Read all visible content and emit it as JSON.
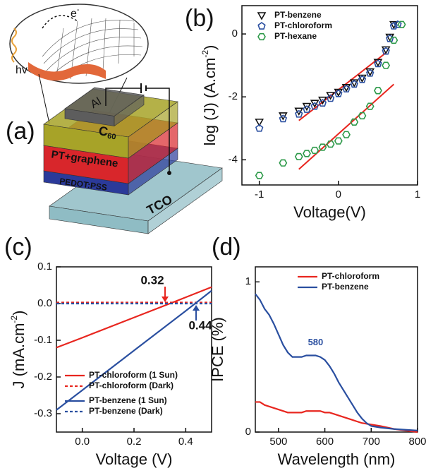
{
  "diagram": {
    "label": "(a)",
    "photon": "hv",
    "electron": "e",
    "electron_sup": "-",
    "al": "Al",
    "c60": "C",
    "c60_sub": "60",
    "active": "PT+graphene",
    "htl": "PEDOT:PSS",
    "tco": "TCO"
  },
  "chart_data": [
    {
      "type": "scatter",
      "panel_label": "(b)",
      "xlabel": "Voltage(V)",
      "ylabel": "log (J) (A.cm",
      "ylabel_sup": "-2",
      "ylabel_end": ")",
      "xlim": [
        -1.22,
        1.0
      ],
      "ylim": [
        -4.8,
        0.9
      ],
      "xticks": [
        -1,
        0,
        1
      ],
      "yticks": [
        0,
        -2,
        -4
      ],
      "legend": "upper left",
      "series": [
        {
          "name": "PT-benzene",
          "color": "#111111",
          "marker": "triangle-down",
          "x": [
            -1,
            -0.7,
            -0.5,
            -0.4,
            -0.3,
            -0.2,
            -0.1,
            0,
            0.1,
            0.2,
            0.3,
            0.4,
            0.5,
            0.6,
            0.65,
            0.7
          ],
          "values": [
            -2.8,
            -2.6,
            -2.45,
            -2.3,
            -2.2,
            -2.1,
            -1.95,
            -1.85,
            -1.7,
            -1.55,
            -1.4,
            -1.2,
            -0.9,
            -0.5,
            -0.1,
            0.3
          ]
        },
        {
          "name": "PT-chloroform",
          "color": "#2a4fa0",
          "marker": "pentagon",
          "x": [
            -1,
            -0.7,
            -0.5,
            -0.4,
            -0.3,
            -0.2,
            -0.1,
            0,
            0.1,
            0.2,
            0.3,
            0.4,
            0.5,
            0.6,
            0.65,
            0.7,
            0.75
          ],
          "values": [
            -3.0,
            -2.7,
            -2.55,
            -2.4,
            -2.3,
            -2.2,
            -2.05,
            -1.9,
            -1.75,
            -1.6,
            -1.45,
            -1.25,
            -0.95,
            -0.55,
            -0.15,
            0.25,
            0.3
          ]
        },
        {
          "name": "PT-hexane",
          "color": "#2e9a4a",
          "marker": "hexagon",
          "x": [
            -1,
            -0.7,
            -0.5,
            -0.4,
            -0.3,
            -0.2,
            -0.1,
            0,
            0.1,
            0.2,
            0.3,
            0.4,
            0.5,
            0.6,
            0.7,
            0.8
          ],
          "values": [
            -4.5,
            -4.1,
            -3.9,
            -3.8,
            -3.7,
            -3.6,
            -3.5,
            -3.4,
            -3.2,
            -2.8,
            -2.6,
            -2.3,
            -1.8,
            -1.0,
            -0.2,
            0.3
          ]
        }
      ],
      "fit_lines": [
        {
          "color": "#e8261f",
          "x": [
            -0.5,
            0.6
          ],
          "values": [
            -2.75,
            -0.6
          ]
        },
        {
          "color": "#e8261f",
          "x": [
            -0.5,
            0.7
          ],
          "values": [
            -4.3,
            -1.6
          ]
        }
      ]
    },
    {
      "type": "line",
      "panel_label": "(c)",
      "xlabel": "Voltage (V)",
      "ylabel": "J (mA.cm",
      "ylabel_sup": "-2",
      "ylabel_end": ")",
      "xlim": [
        -0.1,
        0.5
      ],
      "ylim": [
        -0.35,
        0.1
      ],
      "xticks": [
        {
          "value": 0,
          "label": "0.0"
        },
        0.2,
        0.4
      ],
      "yticks": [
        0.1,
        {
          "value": 0,
          "label": "0.0"
        },
        -0.1,
        -0.2,
        -0.3
      ],
      "legend": "lower left",
      "x": [
        -0.1,
        0.0,
        0.2,
        0.4,
        0.5
      ],
      "series": [
        {
          "name": "PT-chloroform (1 Sun)",
          "color": "#e8261f",
          "dashed": false,
          "values": [
            -0.12,
            -0.093,
            -0.038,
            0.017,
            0.045
          ]
        },
        {
          "name": "PT-chloroform (Dark)",
          "color": "#e8261f",
          "dashed": true,
          "values": [
            0.003,
            0.003,
            0.003,
            0.003,
            0.003
          ]
        },
        {
          "name": "PT-benzene (1 Sun)",
          "color": "#2a4fa0",
          "dashed": false,
          "values": [
            -0.29,
            -0.236,
            -0.128,
            -0.02,
            0.035
          ]
        },
        {
          "name": "PT-benzene (Dark)",
          "color": "#2a4fa0",
          "dashed": true,
          "values": [
            0.0,
            0.0,
            0.0,
            0.0,
            0.0
          ]
        }
      ],
      "annotations": [
        {
          "value": 0.32,
          "label": "0.32",
          "color": "#e8261f",
          "side": "above"
        },
        {
          "value": 0.44,
          "label": "0.44",
          "color": "#2a4fa0",
          "side": "below"
        }
      ]
    },
    {
      "type": "line",
      "panel_label": "(d)",
      "xlabel": "Wavelength (nm)",
      "ylabel": "IPCE (%)",
      "xlim": [
        450,
        800
      ],
      "ylim": [
        0,
        1.1
      ],
      "xticks": [
        500,
        600,
        700,
        800
      ],
      "yticks": [
        0,
        1
      ],
      "legend": "upper right",
      "x": [
        450,
        460,
        470,
        480,
        490,
        500,
        510,
        520,
        530,
        540,
        550,
        560,
        570,
        580,
        590,
        600,
        610,
        620,
        630,
        640,
        650,
        660,
        670,
        680,
        690,
        700,
        720,
        750,
        800
      ],
      "series": [
        {
          "name": "PT-chloroform",
          "color": "#e8261f",
          "dashed": false,
          "values": [
            0.2,
            0.2,
            0.18,
            0.17,
            0.16,
            0.15,
            0.14,
            0.13,
            0.13,
            0.13,
            0.13,
            0.14,
            0.14,
            0.14,
            0.14,
            0.13,
            0.13,
            0.12,
            0.11,
            0.1,
            0.09,
            0.08,
            0.07,
            0.06,
            0.055,
            0.05,
            0.04,
            0.02,
            0.0
          ]
        },
        {
          "name": "PT-benzene",
          "color": "#2a4fa0",
          "dashed": false,
          "values": [
            0.92,
            0.88,
            0.82,
            0.78,
            0.72,
            0.65,
            0.58,
            0.53,
            0.5,
            0.5,
            0.5,
            0.51,
            0.51,
            0.51,
            0.5,
            0.48,
            0.44,
            0.39,
            0.33,
            0.28,
            0.23,
            0.18,
            0.13,
            0.09,
            0.06,
            0.04,
            0.03,
            0.02,
            0.01
          ]
        }
      ],
      "annotations": [
        {
          "value": 580,
          "label": "580",
          "color": "#2a4fa0",
          "side": "above"
        }
      ]
    }
  ]
}
